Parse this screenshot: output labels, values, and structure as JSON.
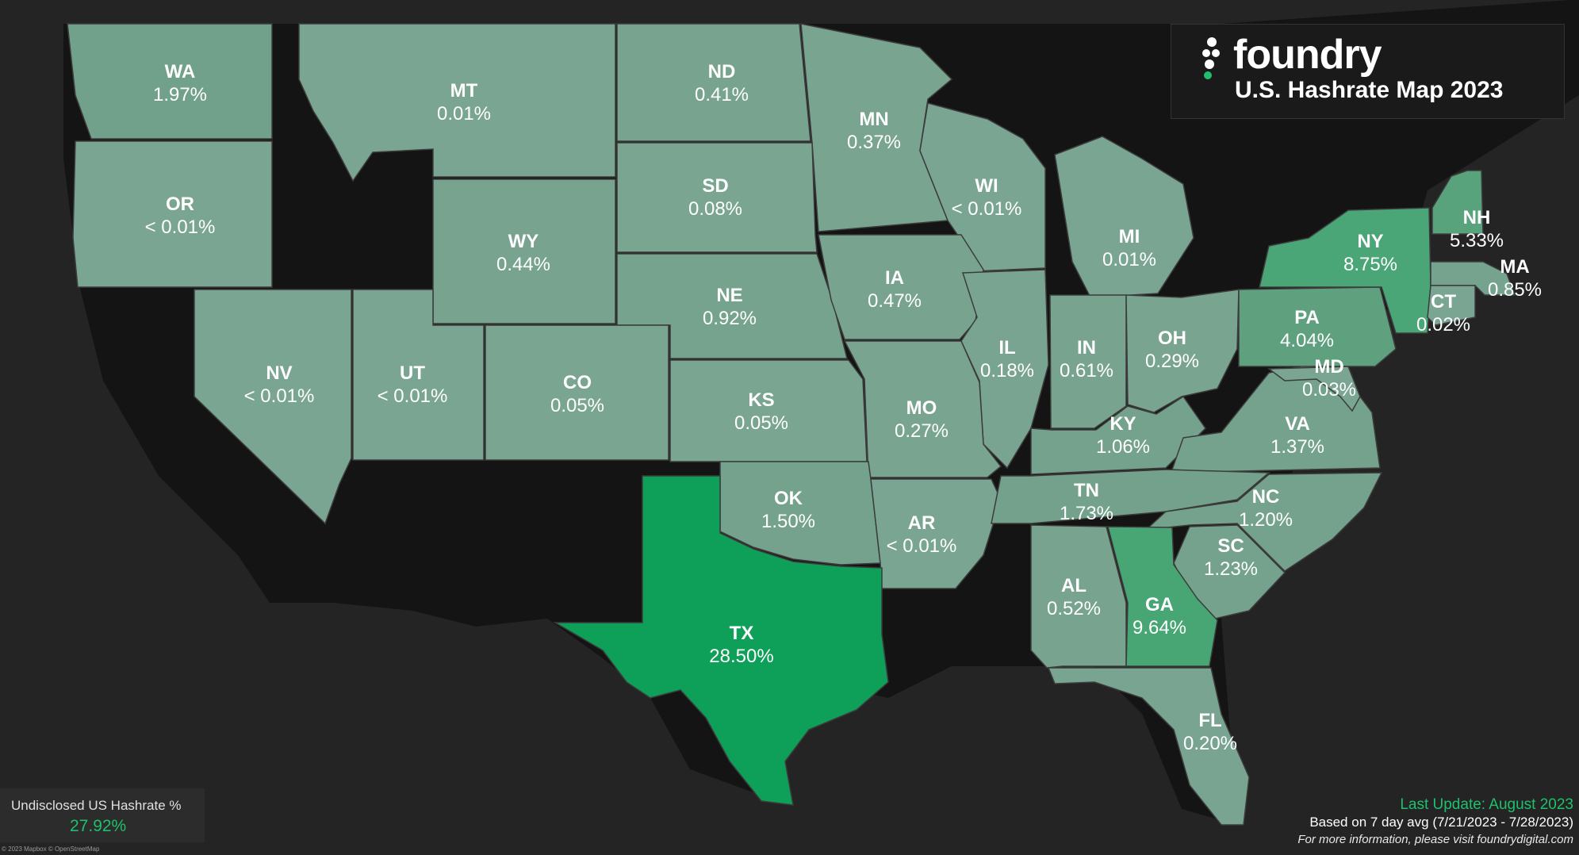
{
  "header": {
    "brand": "foundry",
    "title": "U.S. Hashrate Map 2023"
  },
  "states": [
    {
      "id": "WA",
      "name": "WA",
      "value": "1.97%",
      "share": 1.97,
      "color": "#72a18b"
    },
    {
      "id": "OR",
      "name": "OR",
      "value": "< 0.01%",
      "share": 0.01,
      "color": "#7aa592"
    },
    {
      "id": "MT",
      "name": "MT",
      "value": "0.01%",
      "share": 0.01,
      "color": "#7aa592"
    },
    {
      "id": "ND",
      "name": "ND",
      "value": "0.41%",
      "share": 0.41,
      "color": "#77a38f"
    },
    {
      "id": "MN",
      "name": "MN",
      "value": "0.37%",
      "share": 0.37,
      "color": "#78a490"
    },
    {
      "id": "SD",
      "name": "SD",
      "value": "0.08%",
      "share": 0.08,
      "color": "#79a591"
    },
    {
      "id": "WI",
      "name": "WI",
      "value": "< 0.01%",
      "share": 0.01,
      "color": "#7aa592"
    },
    {
      "id": "WY",
      "name": "WY",
      "value": "0.44%",
      "share": 0.44,
      "color": "#77a38f"
    },
    {
      "id": "MI",
      "name": "MI",
      "value": "0.01%",
      "share": 0.01,
      "color": "#7aa592"
    },
    {
      "id": "NE",
      "name": "NE",
      "value": "0.92%",
      "share": 0.92,
      "color": "#76a38e"
    },
    {
      "id": "IA",
      "name": "IA",
      "value": "0.47%",
      "share": 0.47,
      "color": "#77a38f"
    },
    {
      "id": "NV",
      "name": "NV",
      "value": "< 0.01%",
      "share": 0.01,
      "color": "#7aa592"
    },
    {
      "id": "UT",
      "name": "UT",
      "value": "< 0.01%",
      "share": 0.01,
      "color": "#7aa592"
    },
    {
      "id": "CO",
      "name": "CO",
      "value": "0.05%",
      "share": 0.05,
      "color": "#79a591"
    },
    {
      "id": "IL",
      "name": "IL",
      "value": "0.18%",
      "share": 0.18,
      "color": "#79a491"
    },
    {
      "id": "IN",
      "name": "IN",
      "value": "0.61%",
      "share": 0.61,
      "color": "#77a38f"
    },
    {
      "id": "OH",
      "name": "OH",
      "value": "0.29%",
      "share": 0.29,
      "color": "#78a490"
    },
    {
      "id": "KS",
      "name": "KS",
      "value": "0.05%",
      "share": 0.05,
      "color": "#79a591"
    },
    {
      "id": "MO",
      "name": "MO",
      "value": "0.27%",
      "share": 0.27,
      "color": "#78a490"
    },
    {
      "id": "KY",
      "name": "KY",
      "value": "1.06%",
      "share": 1.06,
      "color": "#75a28d"
    },
    {
      "id": "VA",
      "name": "VA",
      "value": "1.37%",
      "share": 1.37,
      "color": "#74a28c"
    },
    {
      "id": "PA",
      "name": "PA",
      "value": "4.04%",
      "share": 4.04,
      "color": "#5fa17f"
    },
    {
      "id": "NY",
      "name": "NY",
      "value": "8.75%",
      "share": 8.75,
      "color": "#4aa577"
    },
    {
      "id": "NH",
      "name": "NH",
      "value": "5.33%",
      "share": 5.33,
      "color": "#58a27c"
    },
    {
      "id": "MA",
      "name": "MA",
      "value": "0.85%",
      "share": 0.85,
      "color": "#76a38e"
    },
    {
      "id": "CT",
      "name": "CT",
      "value": "0.02%",
      "share": 0.02,
      "color": "#7aa592"
    },
    {
      "id": "MD",
      "name": "MD",
      "value": "0.03%",
      "share": 0.03,
      "color": "#7aa592"
    },
    {
      "id": "OK",
      "name": "OK",
      "value": "1.50%",
      "share": 1.5,
      "color": "#74a28c"
    },
    {
      "id": "AR",
      "name": "AR",
      "value": "< 0.01%",
      "share": 0.01,
      "color": "#7aa592"
    },
    {
      "id": "TN",
      "name": "TN",
      "value": "1.73%",
      "share": 1.73,
      "color": "#73a18b"
    },
    {
      "id": "NC",
      "name": "NC",
      "value": "1.20%",
      "share": 1.2,
      "color": "#75a28d"
    },
    {
      "id": "SC",
      "name": "SC",
      "value": "1.23%",
      "share": 1.23,
      "color": "#75a28d"
    },
    {
      "id": "TX",
      "name": "TX",
      "value": "28.50%",
      "share": 28.5,
      "color": "#0e9f58"
    },
    {
      "id": "AL",
      "name": "AL",
      "value": "0.52%",
      "share": 0.52,
      "color": "#77a38f"
    },
    {
      "id": "GA",
      "name": "GA",
      "value": "9.64%",
      "share": 9.64,
      "color": "#47a674"
    },
    {
      "id": "FL",
      "name": "FL",
      "value": "0.20%",
      "share": 0.2,
      "color": "#79a491"
    }
  ],
  "undisclosed": {
    "label": "Undisclosed US Hashrate %",
    "value": "27.92%"
  },
  "footer": {
    "last_update": "Last Update: August 2023",
    "based_on": "Based on 7 day avg (7/21/2023 - 7/28/2023)",
    "more_info": "For more information, please visit foundrydigital.com"
  },
  "attribution": "© 2023 Mapbox © OpenStreetMap",
  "colors": {
    "background": "#242424",
    "land_dark": "#141414",
    "accent": "#1fc06c"
  }
}
